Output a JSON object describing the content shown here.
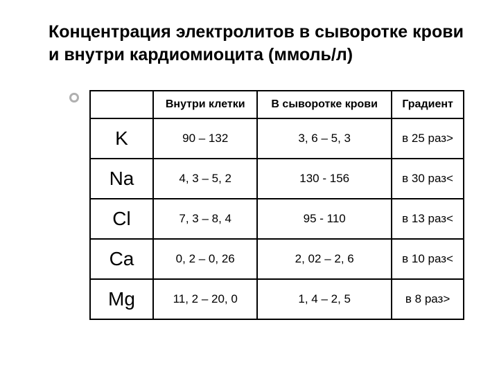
{
  "title": "Концентрация электролитов в сыворотке крови и внутри кардиомиоцита (ммоль/л)",
  "table": {
    "headers": {
      "col0": "",
      "col1": "Внутри клетки",
      "col2": "В сыворотке крови",
      "col3": "Градиент"
    },
    "rows": [
      {
        "element": "K",
        "intracell": "90 – 132",
        "serum": "3, 6 – 5, 3",
        "gradient": "в 25 раз>"
      },
      {
        "element": "Na",
        "intracell": "4, 3 – 5, 2",
        "serum": "130 - 156",
        "gradient": "в 30 раз<"
      },
      {
        "element": "Cl",
        "intracell": "7, 3 – 8, 4",
        "serum": "95 - 110",
        "gradient": "в 13 раз<"
      },
      {
        "element": "Ca",
        "intracell": "0, 2 – 0, 26",
        "serum": "2, 02 – 2, 6",
        "gradient": "в 10 раз<"
      },
      {
        "element": "Mg",
        "intracell": "11, 2 – 20, 0",
        "serum": "1, 4 – 2, 5",
        "gradient": "в 8 раз>"
      }
    ],
    "column_widths": [
      "110px",
      "150px",
      "150px",
      "150px"
    ],
    "border_color": "#000000",
    "background_color": "#ffffff",
    "title_fontsize": 25,
    "header_fontsize": 16,
    "cell_fontsize": 17,
    "element_fontsize": 28
  },
  "bullet": {
    "border_color": "#b0b0b0",
    "size": 14
  }
}
